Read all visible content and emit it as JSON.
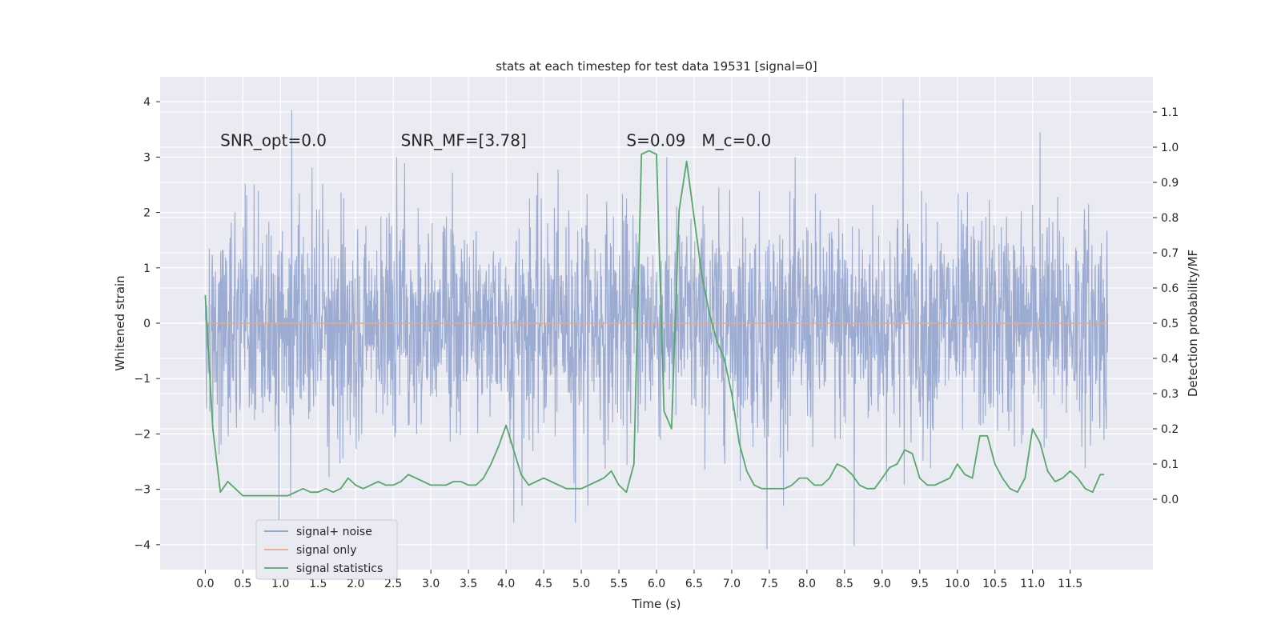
{
  "chart_data": {
    "type": "line",
    "title": "stats at each timestep for test data 19531 [signal=0]",
    "xlabel": "Time (s)",
    "ylabel": "Whitened strain",
    "ylabel_right": "Detection probability/MF",
    "xlim": [
      -0.6,
      12.6
    ],
    "ylim": [
      -4.45,
      4.45
    ],
    "ylim_right": [
      -0.2,
      1.2
    ],
    "x_ticks": [
      "0.0",
      "0.5",
      "1.0",
      "1.5",
      "2.0",
      "2.5",
      "3.0",
      "3.5",
      "4.0",
      "4.5",
      "5.0",
      "5.5",
      "6.0",
      "6.5",
      "7.0",
      "7.5",
      "8.0",
      "8.5",
      "9.0",
      "9.5",
      "10.0",
      "10.5",
      "11.0",
      "11.5"
    ],
    "y_ticks_left": [
      "4",
      "3",
      "2",
      "1",
      "0",
      "−1",
      "−2",
      "−3",
      "−4"
    ],
    "y_ticks_right": [
      "1.1",
      "1.0",
      "0.9",
      "0.8",
      "0.7",
      "0.6",
      "0.5",
      "0.4",
      "0.3",
      "0.2",
      "0.1",
      "0.0"
    ],
    "grid": true,
    "legend_position": "lower-left",
    "annotations": [
      {
        "text": "SNR_opt=0.0",
        "x": 0.2,
        "y": 3.2
      },
      {
        "text": "SNR_MF=[3.78]",
        "x": 2.6,
        "y": 3.2
      },
      {
        "text": "S=0.09",
        "x": 5.6,
        "y": 3.2
      },
      {
        "text": "M_c=0.0",
        "x": 6.6,
        "y": 3.2
      }
    ],
    "series": [
      {
        "name": "signal+ noise",
        "color": "#8da0cb",
        "axis": "left",
        "description": "dense whitened strain noise, approx. Gaussian with unit variance, peaks between about -4.1 and 4.05",
        "x_range": [
          0.0,
          12.0
        ],
        "peaks": [
          {
            "x": 1.15,
            "y": 3.85
          },
          {
            "x": 9.28,
            "y": 4.05
          },
          {
            "x": 11.1,
            "y": 3.45
          },
          {
            "x": 7.47,
            "y": -4.08
          },
          {
            "x": 8.63,
            "y": -4.02
          },
          {
            "x": 0.98,
            "y": -3.65
          },
          {
            "x": 4.1,
            "y": -3.6
          },
          {
            "x": 4.92,
            "y": -3.6
          }
        ]
      },
      {
        "name": "signal only",
        "color": "#e8a98c",
        "axis": "left",
        "x": [
          0.0,
          12.0
        ],
        "values": [
          0.0,
          0.0
        ]
      },
      {
        "name": "signal statistics",
        "color": "#55a868",
        "axis": "right",
        "x": [
          0.0,
          0.1,
          0.2,
          0.3,
          0.4,
          0.5,
          0.6,
          0.7,
          0.8,
          0.9,
          1.0,
          1.1,
          1.2,
          1.3,
          1.4,
          1.5,
          1.6,
          1.7,
          1.8,
          1.9,
          2.0,
          2.1,
          2.2,
          2.3,
          2.4,
          2.5,
          2.6,
          2.7,
          2.8,
          2.9,
          3.0,
          3.1,
          3.2,
          3.3,
          3.4,
          3.5,
          3.6,
          3.7,
          3.8,
          3.9,
          4.0,
          4.1,
          4.2,
          4.3,
          4.4,
          4.5,
          4.6,
          4.7,
          4.8,
          4.9,
          5.0,
          5.1,
          5.2,
          5.3,
          5.4,
          5.5,
          5.6,
          5.7,
          5.8,
          5.9,
          6.0,
          6.1,
          6.2,
          6.3,
          6.4,
          6.5,
          6.6,
          6.7,
          6.8,
          6.9,
          7.0,
          7.1,
          7.2,
          7.3,
          7.4,
          7.5,
          7.6,
          7.7,
          7.8,
          7.9,
          8.0,
          8.1,
          8.2,
          8.3,
          8.4,
          8.5,
          8.6,
          8.7,
          8.8,
          8.9,
          9.0,
          9.1,
          9.2,
          9.3,
          9.4,
          9.5,
          9.6,
          9.7,
          9.8,
          9.9,
          10.0,
          10.1,
          10.2,
          10.3,
          10.4,
          10.5,
          10.6,
          10.7,
          10.8,
          10.9,
          11.0,
          11.1,
          11.2,
          11.3,
          11.4,
          11.5,
          11.6,
          11.7,
          11.8,
          11.9,
          11.95
        ],
        "values": [
          0.58,
          0.2,
          0.02,
          0.05,
          0.03,
          0.01,
          0.01,
          0.01,
          0.01,
          0.01,
          0.01,
          0.01,
          0.02,
          0.03,
          0.02,
          0.02,
          0.03,
          0.02,
          0.03,
          0.06,
          0.04,
          0.03,
          0.04,
          0.05,
          0.04,
          0.04,
          0.05,
          0.07,
          0.06,
          0.05,
          0.04,
          0.04,
          0.04,
          0.05,
          0.05,
          0.04,
          0.04,
          0.06,
          0.1,
          0.15,
          0.21,
          0.14,
          0.07,
          0.04,
          0.05,
          0.06,
          0.05,
          0.04,
          0.03,
          0.03,
          0.03,
          0.04,
          0.05,
          0.06,
          0.08,
          0.04,
          0.02,
          0.1,
          0.98,
          0.99,
          0.98,
          0.25,
          0.2,
          0.82,
          0.96,
          0.8,
          0.64,
          0.53,
          0.45,
          0.4,
          0.3,
          0.16,
          0.08,
          0.04,
          0.03,
          0.03,
          0.03,
          0.03,
          0.04,
          0.06,
          0.06,
          0.04,
          0.04,
          0.06,
          0.1,
          0.09,
          0.07,
          0.04,
          0.03,
          0.03,
          0.06,
          0.09,
          0.1,
          0.14,
          0.13,
          0.06,
          0.04,
          0.04,
          0.05,
          0.06,
          0.1,
          0.07,
          0.06,
          0.18,
          0.18,
          0.1,
          0.06,
          0.03,
          0.02,
          0.06,
          0.2,
          0.16,
          0.08,
          0.05,
          0.06,
          0.08,
          0.06,
          0.03,
          0.02,
          0.07,
          0.07
        ]
      }
    ]
  }
}
